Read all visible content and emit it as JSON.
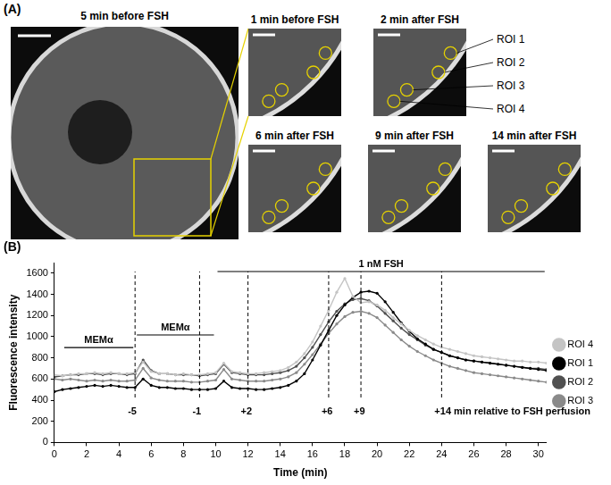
{
  "panel_a": {
    "label": "(A)",
    "main_image": {
      "title": "5 min before FSH"
    },
    "zoom_panels": [
      {
        "title": "1 min before FSH"
      },
      {
        "title": "2 min after FSH"
      },
      {
        "title": "6 min after FSH"
      },
      {
        "title": "9 min after FSH"
      },
      {
        "title": "14 min after FSH"
      }
    ],
    "roi_labels": [
      "ROI 1",
      "ROI 2",
      "ROI 3",
      "ROI 4"
    ]
  },
  "panel_b": {
    "label": "(B)"
  },
  "chart_data": {
    "type": "line",
    "x_label": "Time (min)",
    "y_label": "Fluorescence intensity",
    "x": [
      0,
      0.5,
      1,
      1.5,
      2,
      2.5,
      3,
      3.5,
      4,
      4.5,
      5,
      5.5,
      6,
      6.5,
      7,
      7.5,
      8,
      8.5,
      9,
      9.5,
      10,
      10.5,
      11,
      11.5,
      12,
      12.5,
      13,
      13.5,
      14,
      14.5,
      15,
      15.5,
      16,
      16.5,
      17,
      17.5,
      18,
      18.5,
      19,
      19.5,
      20,
      20.5,
      21,
      21.5,
      22,
      22.5,
      23,
      23.5,
      24,
      24.5,
      25,
      25.5,
      26,
      26.5,
      27,
      27.5,
      28,
      28.5,
      29,
      29.5,
      30,
      30.5
    ],
    "series": [
      {
        "name": "ROI 4",
        "color": "#c4c4c4",
        "marker": "circle",
        "values": [
          640,
          630,
          640,
          650,
          650,
          660,
          650,
          660,
          650,
          650,
          660,
          760,
          670,
          650,
          650,
          640,
          650,
          640,
          640,
          650,
          660,
          750,
          670,
          660,
          650,
          650,
          660,
          670,
          680,
          710,
          760,
          840,
          950,
          1100,
          1250,
          1420,
          1550,
          1380,
          1320,
          1330,
          1300,
          1250,
          1180,
          1120,
          1060,
          1010,
          970,
          930,
          900,
          880,
          860,
          840,
          820,
          810,
          800,
          790,
          780,
          770,
          770,
          760,
          760,
          750
        ]
      },
      {
        "name": "ROI 1",
        "color": "#000000",
        "marker": "circle",
        "values": [
          480,
          500,
          510,
          520,
          530,
          540,
          530,
          540,
          530,
          520,
          520,
          600,
          540,
          520,
          520,
          510,
          510,
          500,
          500,
          500,
          510,
          580,
          520,
          510,
          510,
          500,
          500,
          510,
          520,
          540,
          580,
          650,
          780,
          920,
          1060,
          1200,
          1300,
          1370,
          1420,
          1430,
          1410,
          1330,
          1230,
          1130,
          1050,
          980,
          930,
          880,
          850,
          820,
          800,
          780,
          770,
          760,
          750,
          740,
          730,
          720,
          710,
          700,
          690,
          680
        ]
      },
      {
        "name": "ROI 2",
        "color": "#505050",
        "marker": "circle",
        "values": [
          620,
          630,
          640,
          640,
          650,
          650,
          640,
          650,
          650,
          640,
          650,
          780,
          680,
          650,
          650,
          640,
          640,
          640,
          630,
          640,
          650,
          740,
          660,
          650,
          640,
          640,
          640,
          650,
          660,
          680,
          720,
          800,
          900,
          1020,
          1140,
          1240,
          1310,
          1350,
          1360,
          1340,
          1290,
          1220,
          1150,
          1080,
          1020,
          970,
          920,
          880,
          850,
          820,
          800,
          780,
          770,
          760,
          750,
          740,
          730,
          720,
          710,
          700,
          700,
          690
        ]
      },
      {
        "name": "ROI 3",
        "color": "#8a8a8a",
        "marker": "circle",
        "values": [
          600,
          590,
          600,
          590,
          580,
          590,
          580,
          590,
          580,
          580,
          590,
          700,
          610,
          590,
          580,
          580,
          580,
          570,
          570,
          580,
          590,
          690,
          600,
          590,
          580,
          580,
          580,
          590,
          600,
          620,
          660,
          740,
          830,
          930,
          1030,
          1120,
          1190,
          1230,
          1240,
          1220,
          1180,
          1110,
          1040,
          970,
          910,
          860,
          820,
          780,
          750,
          720,
          700,
          680,
          660,
          650,
          640,
          630,
          620,
          610,
          600,
          590,
          580,
          570
        ]
      }
    ],
    "xlim": [
      0,
      30.5
    ],
    "xticks": [
      0,
      2,
      4,
      6,
      8,
      10,
      12,
      14,
      16,
      18,
      20,
      22,
      24,
      26,
      28,
      30
    ],
    "ylim": [
      0,
      1700
    ],
    "yticks": [
      0,
      200,
      400,
      600,
      800,
      1000,
      1200,
      1400,
      1600
    ],
    "grid": false,
    "legend": "right",
    "periods": [
      {
        "label": "MEMα",
        "start": 0.5,
        "end": 5
      },
      {
        "label": "MEMα",
        "start": 5,
        "end": 10
      },
      {
        "label": "1 nM FSH",
        "start": 10,
        "end": 30.5
      }
    ],
    "annotations": [
      {
        "x": 5,
        "label": "-5"
      },
      {
        "x": 9,
        "label": "-1"
      },
      {
        "x": 12,
        "label": "+2"
      },
      {
        "x": 17,
        "label": "+6"
      },
      {
        "x": 19,
        "label": "+9"
      },
      {
        "x": 24,
        "label": "+14 min relative to FSH perfusion"
      }
    ]
  }
}
